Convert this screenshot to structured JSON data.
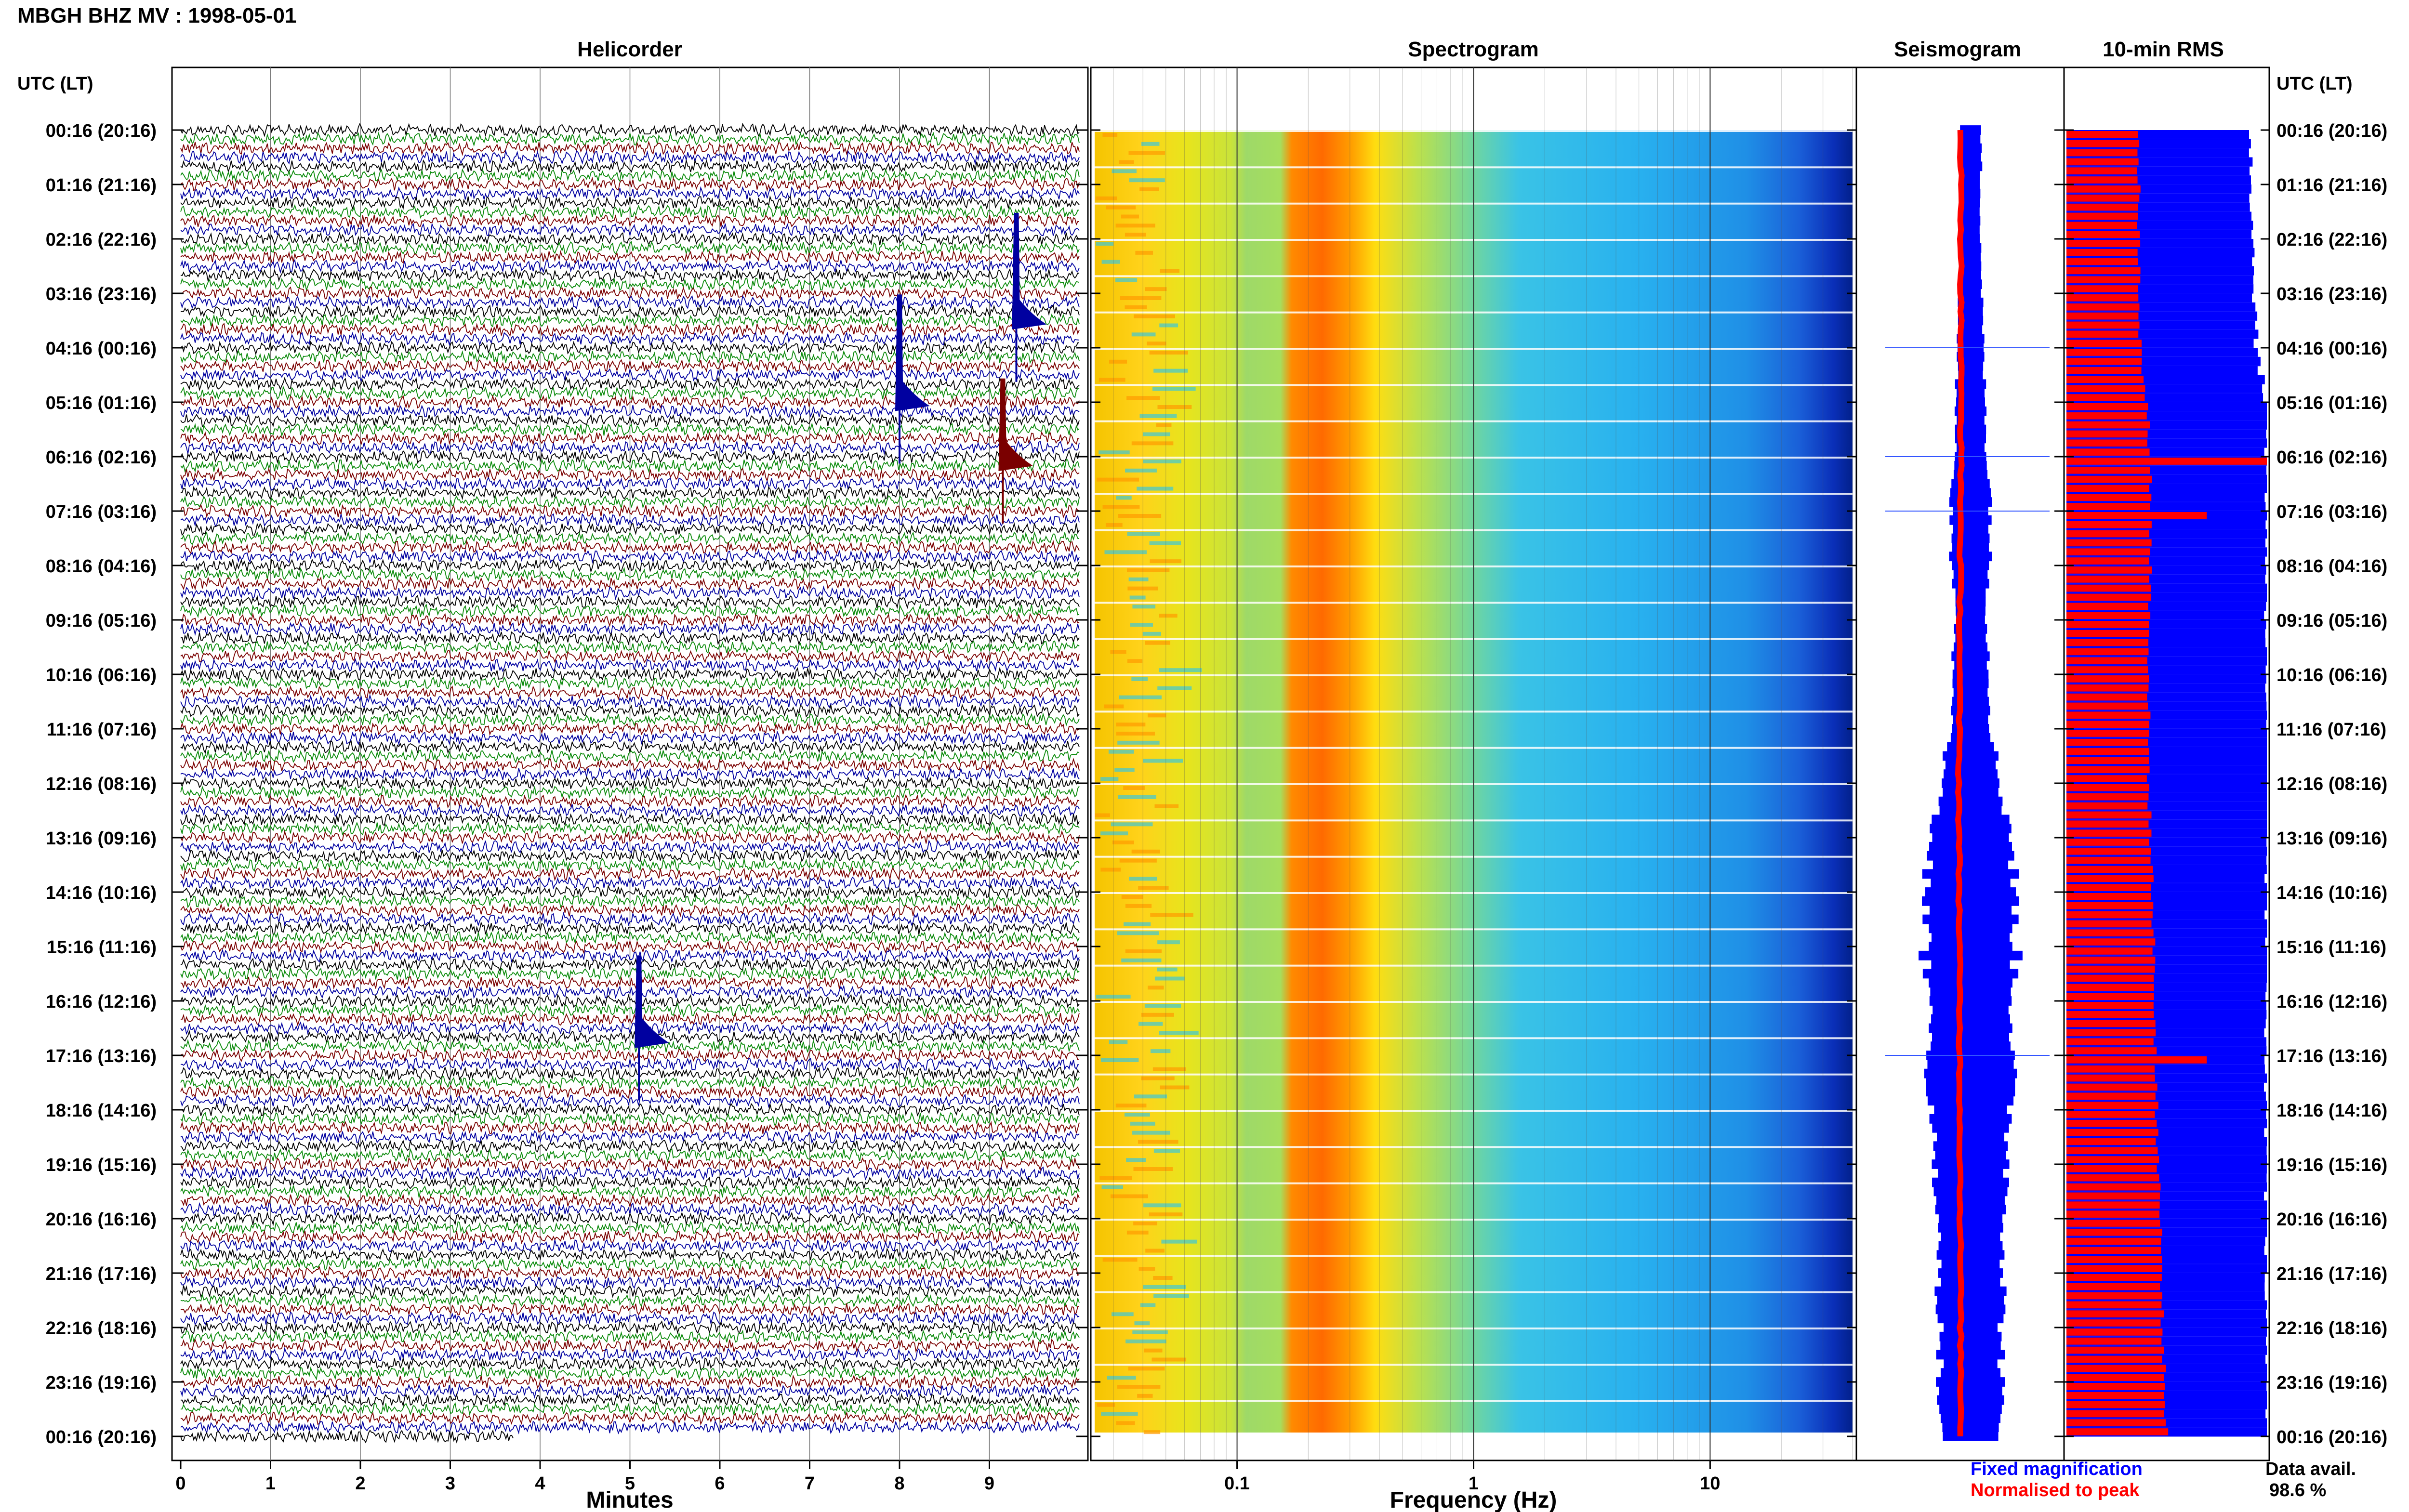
{
  "page": {
    "title": "MBGH BHZ MV : 1998-05-01"
  },
  "panels": {
    "helicorder": "Helicorder",
    "spectrogram": "Spectrogram",
    "seismogram": "Seismogram",
    "rms": "10-min RMS"
  },
  "axis": {
    "time_header": "UTC (LT)",
    "minutes_label": "Minutes",
    "frequency_label": "Frequency (Hz)"
  },
  "legend": {
    "fixed": "Fixed magnification",
    "normalised": "Normalised to peak",
    "avail_label": "Data avail.",
    "avail_value": "98.6 %"
  },
  "colors": {
    "trace_cycle": [
      "#000000",
      "#0a8a0a",
      "#7a0000",
      "#0000a0"
    ],
    "fixed": "#0000ff",
    "normalised": "#ff0000"
  },
  "chart_data": [
    {
      "type": "line",
      "title": "Helicorder",
      "xlabel": "Minutes",
      "xlim": [
        0,
        10
      ],
      "x_ticks": [
        0,
        1,
        2,
        3,
        4,
        5,
        6,
        7,
        8,
        9
      ],
      "rows": 144,
      "row_minutes": 10,
      "y_tick_labels": [
        "00:16 (20:16)",
        "01:16 (21:16)",
        "02:16 (22:16)",
        "03:16 (23:16)",
        "04:16 (00:16)",
        "05:16 (01:16)",
        "06:16 (02:16)",
        "07:16 (03:16)",
        "08:16 (04:16)",
        "09:16 (05:16)",
        "10:16 (06:16)",
        "11:16 (07:16)",
        "12:16 (08:16)",
        "13:16 (09:16)",
        "14:16 (10:16)",
        "15:16 (11:16)",
        "16:16 (12:16)",
        "17:16 (13:16)",
        "18:16 (14:16)",
        "19:16 (15:16)",
        "20:16 (16:16)",
        "21:16 (17:16)",
        "22:16 (18:16)",
        "23:16 (19:16)",
        "00:16 (20:16)"
      ],
      "events": [
        {
          "hour": 4.8,
          "minute": 8.0,
          "color": "#0000a0"
        },
        {
          "hour": 3.3,
          "minute": 9.3,
          "color": "#0000a0"
        },
        {
          "hour": 5.9,
          "minute": 9.15,
          "color": "#7a0000"
        },
        {
          "hour": 16.5,
          "minute": 5.1,
          "color": "#0000a0"
        }
      ],
      "last_row_end_minute": 3.7
    },
    {
      "type": "heatmap",
      "title": "Spectrogram",
      "xlabel": "Frequency (Hz)",
      "xscale": "log",
      "xlim": [
        0.025,
        40
      ],
      "x_ticks": [
        0.1,
        1,
        10
      ],
      "peak_band_hz": [
        0.22,
        0.4
      ]
    },
    {
      "type": "line",
      "title": "Seismogram",
      "series": [
        {
          "name": "Fixed magnification",
          "hours": [
            0,
            2,
            4,
            5,
            6,
            7,
            8,
            9,
            10,
            11,
            12,
            13,
            14,
            15,
            16,
            17,
            18,
            19,
            20,
            21,
            22,
            23,
            24
          ],
          "halfwidth": [
            0.05,
            0.05,
            0.06,
            0.07,
            0.08,
            0.1,
            0.09,
            0.08,
            0.09,
            0.1,
            0.14,
            0.2,
            0.21,
            0.22,
            0.21,
            0.2,
            0.19,
            0.18,
            0.17,
            0.16,
            0.15,
            0.15,
            0.13
          ]
        },
        {
          "name": "Normalised to peak",
          "hours": [
            0,
            6,
            12,
            24
          ],
          "offset": [
            0.0,
            0.0,
            -0.01,
            0.0
          ]
        }
      ]
    },
    {
      "type": "bar",
      "title": "10-min RMS",
      "rows": 144,
      "hours": [
        0,
        2,
        4,
        5,
        6,
        8,
        10,
        12,
        14,
        16,
        18,
        20,
        22,
        24
      ],
      "red_fraction": [
        0.36,
        0.36,
        0.37,
        0.4,
        0.42,
        0.42,
        0.41,
        0.41,
        0.43,
        0.44,
        0.45,
        0.47,
        0.48,
        0.5
      ],
      "blue_fraction": [
        0.92,
        0.93,
        0.95,
        1.0,
        1.0,
        1.0,
        1.0,
        1.0,
        1.0,
        1.0,
        1.0,
        1.0,
        1.0,
        1.0
      ],
      "spikes": [
        {
          "hour": 6.0,
          "red_fraction": 1.0
        },
        {
          "hour": 7.0,
          "red_fraction": 0.7
        },
        {
          "hour": 17.0,
          "red_fraction": 0.7
        }
      ]
    }
  ]
}
